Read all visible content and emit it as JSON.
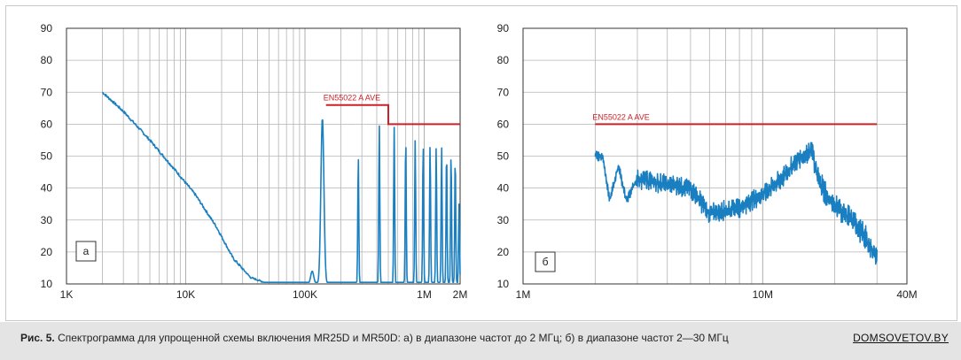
{
  "chart_data": [
    {
      "type": "line",
      "panel_label": "а",
      "x_scale": "log",
      "xlim": [
        1000,
        2000000
      ],
      "ylim": [
        10,
        90
      ],
      "y_ticks": [
        "10",
        "20",
        "30",
        "40",
        "50",
        "60",
        "70",
        "80",
        "90"
      ],
      "x_ticks": [
        {
          "value": 1000,
          "label": "1K"
        },
        {
          "value": 10000,
          "label": "10K"
        },
        {
          "value": 100000,
          "label": "100K"
        },
        {
          "value": 1000000,
          "label": "1M"
        },
        {
          "value": 2000000,
          "label": "2M"
        }
      ],
      "grid": true,
      "series_color": "#1a7fc1",
      "limit": {
        "label": "EN55022 A AVE",
        "color": "#cc2027",
        "segments": [
          {
            "x0": 150000,
            "x1": 500000,
            "y": 66
          },
          {
            "x0": 500000,
            "x1": 2000000,
            "y": 60
          }
        ]
      },
      "envelope": [
        [
          2000,
          70
        ],
        [
          3000,
          64
        ],
        [
          5000,
          55
        ],
        [
          8000,
          46
        ],
        [
          12000,
          38
        ],
        [
          18000,
          28
        ],
        [
          25000,
          18
        ],
        [
          35000,
          12
        ],
        [
          50000,
          10
        ],
        [
          80000,
          10
        ],
        [
          100000,
          10
        ]
      ],
      "peaks": [
        {
          "x": 115000,
          "y": 14
        },
        {
          "x": 140000,
          "y": 62
        },
        {
          "x": 280000,
          "y": 50
        },
        {
          "x": 420000,
          "y": 60
        },
        {
          "x": 560000,
          "y": 59
        },
        {
          "x": 700000,
          "y": 56
        },
        {
          "x": 840000,
          "y": 55
        },
        {
          "x": 980000,
          "y": 54
        },
        {
          "x": 1120000,
          "y": 54
        },
        {
          "x": 1260000,
          "y": 53
        },
        {
          "x": 1400000,
          "y": 53
        },
        {
          "x": 1540000,
          "y": 52
        },
        {
          "x": 1680000,
          "y": 51
        },
        {
          "x": 1820000,
          "y": 50
        },
        {
          "x": 1960000,
          "y": 35
        }
      ]
    },
    {
      "type": "line",
      "panel_label": "б",
      "x_scale": "log",
      "xlim": [
        1000000,
        40000000
      ],
      "ylim": [
        10,
        90
      ],
      "y_ticks": [
        "10",
        "20",
        "30",
        "40",
        "50",
        "60",
        "70",
        "80",
        "90"
      ],
      "x_ticks": [
        {
          "value": 1000000,
          "label": "1M"
        },
        {
          "value": 10000000,
          "label": "10M"
        },
        {
          "value": 40000000,
          "label": "40M"
        }
      ],
      "grid": true,
      "series_color": "#1a7fc1",
      "limit": {
        "label": "EN55022 A AVE",
        "color": "#cc2027",
        "segments": [
          {
            "x0": 2000000,
            "x1": 30000000,
            "y": 60
          }
        ]
      },
      "envelope": [
        [
          2000000,
          50
        ],
        [
          2150000,
          50
        ],
        [
          2300000,
          36
        ],
        [
          2500000,
          47
        ],
        [
          2700000,
          36
        ],
        [
          3000000,
          43
        ],
        [
          4000000,
          41
        ],
        [
          5000000,
          40
        ],
        [
          6000000,
          32
        ],
        [
          7000000,
          33
        ],
        [
          8000000,
          34
        ],
        [
          10000000,
          38
        ],
        [
          12000000,
          43
        ],
        [
          14000000,
          49
        ],
        [
          16000000,
          52
        ],
        [
          17000000,
          43
        ],
        [
          19000000,
          36
        ],
        [
          22000000,
          32
        ],
        [
          25000000,
          28
        ],
        [
          28000000,
          22
        ],
        [
          30000000,
          18
        ]
      ]
    }
  ],
  "caption": {
    "figure": "Рис. 5.",
    "text": "Спектрограмма для упрощенной схемы включения MR25D и MR50D: а) в диапазоне частот до 2 МГц; б) в диапазоне частот 2—30 МГц"
  },
  "site_label": "DOMSOVETOV.BY"
}
